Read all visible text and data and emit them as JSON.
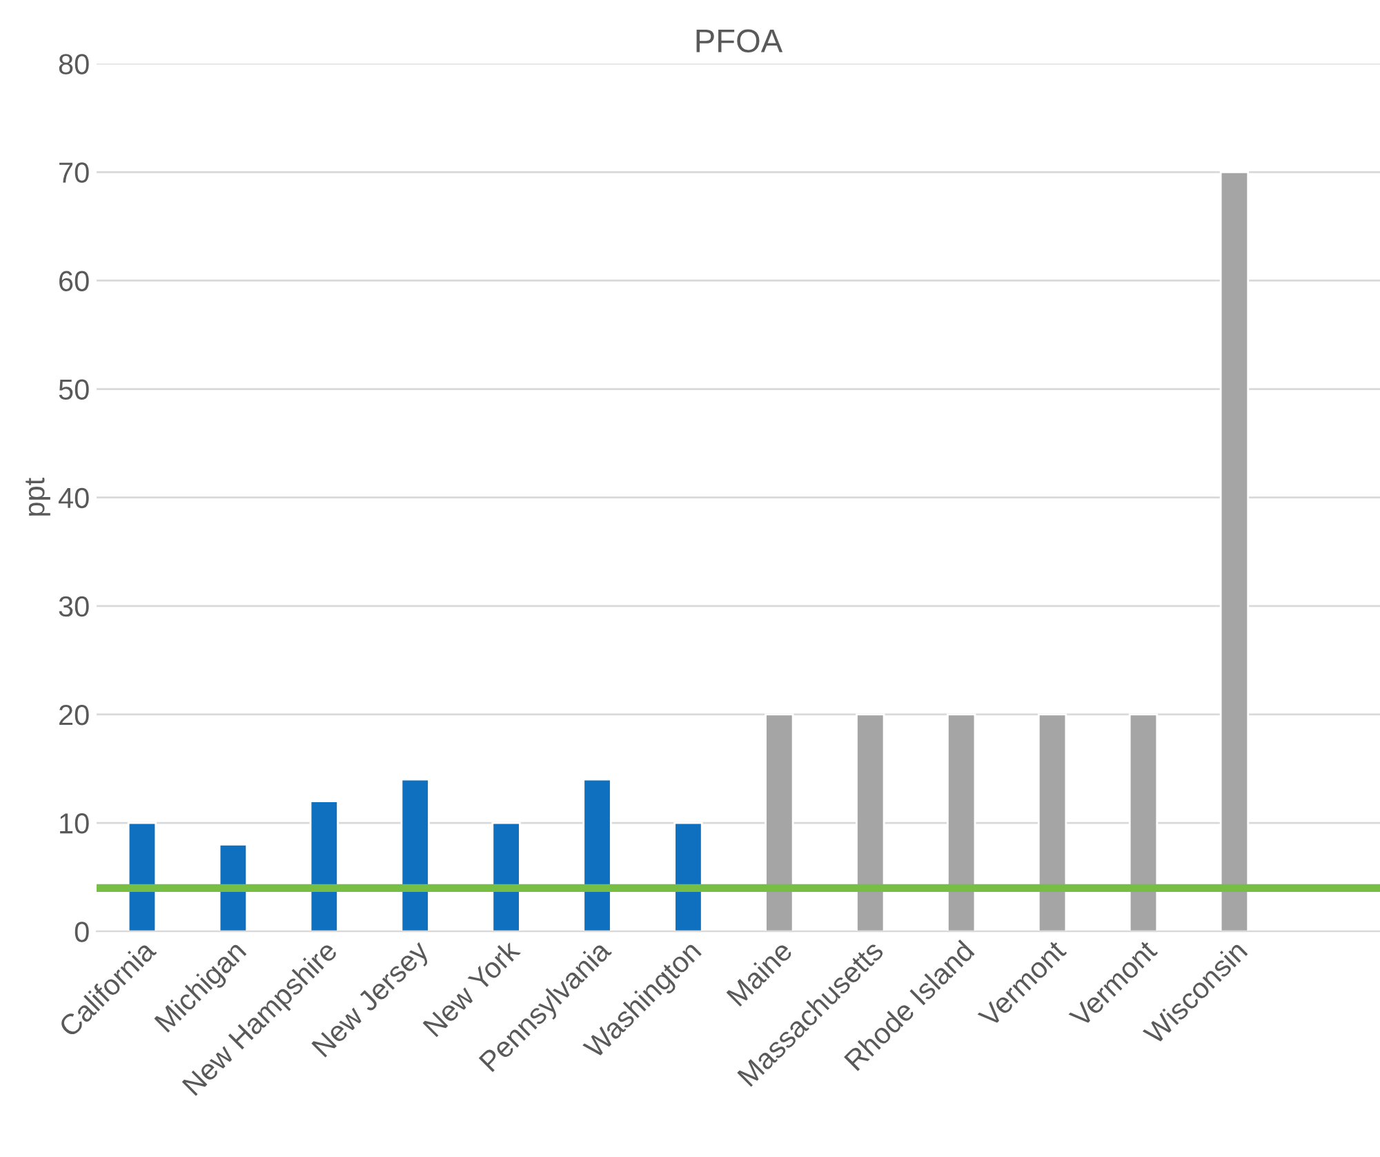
{
  "chart_data": {
    "type": "bar",
    "title": "PFOA",
    "ylabel": "ppt",
    "categories": [
      "California",
      "Michigan",
      "New Hampshire",
      "New Jersey",
      "New York",
      "Pennsylvania",
      "Washington",
      "Maine",
      "Massachusetts",
      "Rhode Island",
      "Vermont",
      "Vermont",
      "Wisconsin"
    ],
    "values": [
      10,
      8,
      12,
      14,
      10,
      14,
      10,
      20,
      20,
      20,
      20,
      20,
      70
    ],
    "colors": [
      "#0e70bf",
      "#0e70bf",
      "#0e70bf",
      "#0e70bf",
      "#0e70bf",
      "#0e70bf",
      "#0e70bf",
      "#a5a5a5",
      "#a5a5a5",
      "#a5a5a5",
      "#a5a5a5",
      "#a5a5a5",
      "#a5a5a5"
    ],
    "ylim": [
      0,
      80
    ],
    "yticks": [
      0,
      10,
      20,
      30,
      40,
      50,
      60,
      70,
      80
    ],
    "ref_lines": [
      {
        "axis": "y",
        "value": 4,
        "label": null,
        "color": "#76bf44"
      }
    ],
    "grid": "y",
    "legend": false
  }
}
